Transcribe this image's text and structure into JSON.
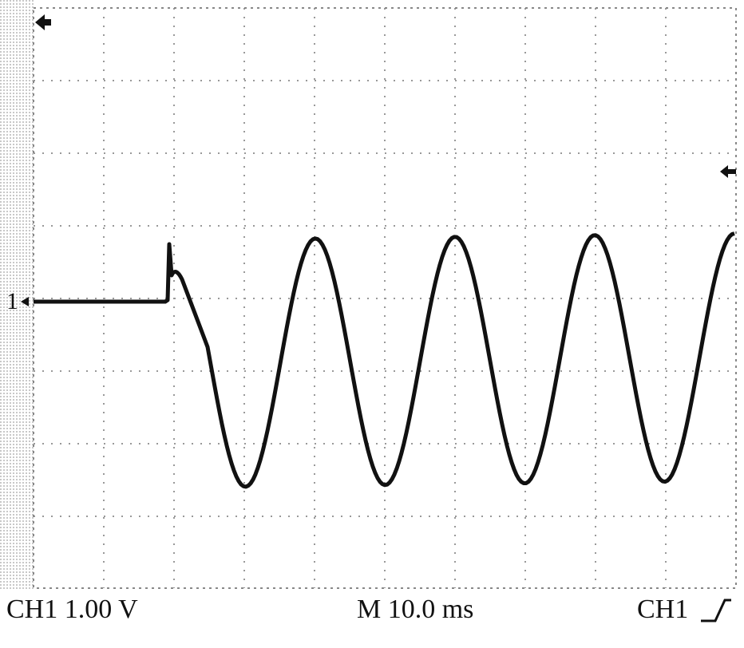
{
  "screen": {
    "channel_marker": "1"
  },
  "status_bar": {
    "channel_scale": "CH1 1.00 V",
    "timebase": "M 10.0 ms",
    "trigger_source": "CH1"
  }
}
